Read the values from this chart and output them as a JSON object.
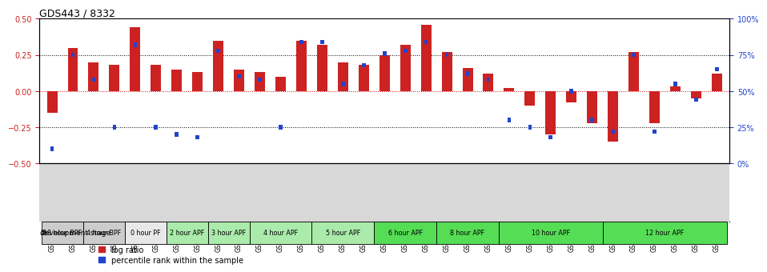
{
  "title": "GDS443 / 8332",
  "samples": [
    "GSM4585",
    "GSM4586",
    "GSM4587",
    "GSM4588",
    "GSM4589",
    "GSM4590",
    "GSM4591",
    "GSM4592",
    "GSM4593",
    "GSM4594",
    "GSM4595",
    "GSM4596",
    "GSM4597",
    "GSM4598",
    "GSM4599",
    "GSM4600",
    "GSM4601",
    "GSM4602",
    "GSM4603",
    "GSM4604",
    "GSM4605",
    "GSM4606",
    "GSM4607",
    "GSM4608",
    "GSM4609",
    "GSM4610",
    "GSM4611",
    "GSM4612",
    "GSM4613",
    "GSM4614",
    "GSM4615",
    "GSM4616",
    "GSM4617"
  ],
  "log_ratio": [
    -0.15,
    0.3,
    0.2,
    0.18,
    0.44,
    0.18,
    0.15,
    0.13,
    0.35,
    0.15,
    0.13,
    0.1,
    0.35,
    0.32,
    0.2,
    0.18,
    0.25,
    0.32,
    0.46,
    0.27,
    0.16,
    0.12,
    0.02,
    -0.1,
    -0.3,
    -0.08,
    -0.22,
    -0.35,
    0.27,
    -0.22,
    0.03,
    -0.05,
    0.12
  ],
  "percentile": [
    10,
    75,
    58,
    25,
    82,
    25,
    20,
    18,
    78,
    60,
    58,
    25,
    84,
    84,
    55,
    68,
    76,
    78,
    84,
    75,
    62,
    58,
    30,
    25,
    18,
    50,
    30,
    22,
    75,
    22,
    55,
    44,
    65
  ],
  "stages": [
    {
      "label": "18 hour BPF",
      "start": 0,
      "end": 2,
      "color": "#cccccc"
    },
    {
      "label": "4 hour BPF",
      "start": 2,
      "end": 4,
      "color": "#cccccc"
    },
    {
      "label": "0 hour PF",
      "start": 4,
      "end": 6,
      "color": "#e8e8e8"
    },
    {
      "label": "2 hour APF",
      "start": 6,
      "end": 8,
      "color": "#aaeaaa"
    },
    {
      "label": "3 hour APF",
      "start": 8,
      "end": 10,
      "color": "#aaeaaa"
    },
    {
      "label": "4 hour APF",
      "start": 10,
      "end": 13,
      "color": "#aaeaaa"
    },
    {
      "label": "5 hour APF",
      "start": 13,
      "end": 16,
      "color": "#aaeaaa"
    },
    {
      "label": "6 hour APF",
      "start": 16,
      "end": 19,
      "color": "#55dd55"
    },
    {
      "label": "8 hour APF",
      "start": 19,
      "end": 22,
      "color": "#55dd55"
    },
    {
      "label": "10 hour APF",
      "start": 22,
      "end": 27,
      "color": "#55dd55"
    },
    {
      "label": "12 hour APF",
      "start": 27,
      "end": 33,
      "color": "#55dd55"
    }
  ],
  "bar_color": "#cc2222",
  "percentile_color": "#2244cc",
  "ylim_left": [
    -0.5,
    0.5
  ],
  "ylim_right": [
    0,
    100
  ],
  "yticks_left": [
    -0.5,
    -0.25,
    0.0,
    0.25,
    0.5
  ],
  "yticks_right": [
    0,
    25,
    50,
    75,
    100
  ],
  "background_color": "#ffffff",
  "sample_area_color": "#d8d8d8"
}
